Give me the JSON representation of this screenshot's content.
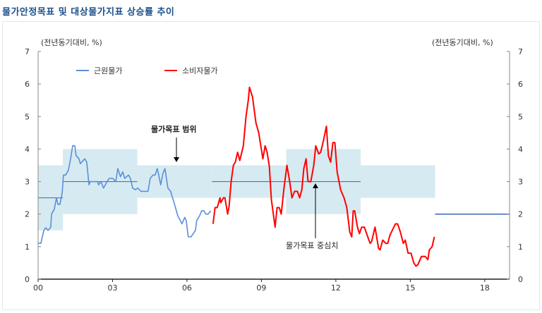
{
  "title": "물가안정목표 및 대상물가지표 상승률 추이",
  "chart_data": {
    "type": "line",
    "title": "물가안정목표 및 대상물가지표 상승률 추이",
    "ylabel_left": "(전년동기대비, %)",
    "ylabel_right": "(전년동기대비, %)",
    "ylim": [
      0,
      7
    ],
    "yticks": [
      "0",
      "1",
      "2",
      "3",
      "4",
      "5",
      "6",
      "7"
    ],
    "xlim": [
      2000,
      2019
    ],
    "xticks": [
      {
        "x": 2000,
        "label": "00"
      },
      {
        "x": 2003,
        "label": "03"
      },
      {
        "x": 2006,
        "label": "06"
      },
      {
        "x": 2009,
        "label": "09"
      },
      {
        "x": 2012,
        "label": "12"
      },
      {
        "x": 2015,
        "label": "15"
      },
      {
        "x": 2018,
        "label": "18"
      }
    ],
    "legend_placement": "top-left",
    "colors": {
      "core": "#5b8fd9",
      "cpi": "#ff0000",
      "band": "#d6eaf1",
      "target": "#3a66b0"
    },
    "series": [
      {
        "name": "근원물가",
        "key": "core",
        "points": [
          [
            2000.0,
            1.1
          ],
          [
            2000.11,
            1.1
          ],
          [
            2000.23,
            1.5
          ],
          [
            2000.31,
            1.58
          ],
          [
            2000.4,
            1.5
          ],
          [
            2000.51,
            1.6
          ],
          [
            2000.54,
            2.0
          ],
          [
            2000.65,
            2.15
          ],
          [
            2000.74,
            2.5
          ],
          [
            2000.8,
            2.3
          ],
          [
            2000.88,
            2.3
          ],
          [
            2000.97,
            2.65
          ],
          [
            2001.02,
            3.2
          ],
          [
            2001.11,
            3.2
          ],
          [
            2001.22,
            3.35
          ],
          [
            2001.31,
            3.7
          ],
          [
            2001.39,
            4.1
          ],
          [
            2001.48,
            4.1
          ],
          [
            2001.53,
            3.8
          ],
          [
            2001.65,
            3.7
          ],
          [
            2001.7,
            3.55
          ],
          [
            2001.88,
            3.7
          ],
          [
            2001.96,
            3.6
          ],
          [
            2002.05,
            2.9
          ],
          [
            2002.1,
            3.0
          ],
          [
            2002.39,
            3.0
          ],
          [
            2002.44,
            2.9
          ],
          [
            2002.53,
            3.0
          ],
          [
            2002.64,
            2.8
          ],
          [
            2002.78,
            3.0
          ],
          [
            2002.87,
            3.1
          ],
          [
            2003.01,
            3.1
          ],
          [
            2003.13,
            3.0
          ],
          [
            2003.21,
            3.4
          ],
          [
            2003.32,
            3.15
          ],
          [
            2003.41,
            3.3
          ],
          [
            2003.49,
            3.1
          ],
          [
            2003.64,
            3.2
          ],
          [
            2003.72,
            3.1
          ],
          [
            2003.81,
            2.8
          ],
          [
            2003.92,
            2.75
          ],
          [
            2004.01,
            2.8
          ],
          [
            2004.15,
            2.7
          ],
          [
            2004.43,
            2.7
          ],
          [
            2004.52,
            3.1
          ],
          [
            2004.63,
            3.2
          ],
          [
            2004.72,
            3.2
          ],
          [
            2004.8,
            3.4
          ],
          [
            2004.86,
            3.2
          ],
          [
            2004.94,
            2.9
          ],
          [
            2005.03,
            3.25
          ],
          [
            2005.11,
            3.4
          ],
          [
            2005.23,
            2.8
          ],
          [
            2005.34,
            2.7
          ],
          [
            2005.48,
            2.35
          ],
          [
            2005.63,
            1.95
          ],
          [
            2005.8,
            1.7
          ],
          [
            2005.91,
            1.9
          ],
          [
            2005.97,
            1.8
          ],
          [
            2006.05,
            1.3
          ],
          [
            2006.16,
            1.3
          ],
          [
            2006.34,
            1.5
          ],
          [
            2006.39,
            1.8
          ],
          [
            2006.51,
            1.95
          ],
          [
            2006.59,
            2.1
          ],
          [
            2006.68,
            2.1
          ],
          [
            2006.76,
            2.0
          ],
          [
            2006.85,
            2.0
          ],
          [
            2006.96,
            2.1
          ]
        ]
      },
      {
        "name": "소비자물가",
        "key": "cpi",
        "points": [
          [
            2007.05,
            1.7
          ],
          [
            2007.13,
            2.2
          ],
          [
            2007.22,
            2.2
          ],
          [
            2007.33,
            2.5
          ],
          [
            2007.36,
            2.35
          ],
          [
            2007.47,
            2.5
          ],
          [
            2007.53,
            2.5
          ],
          [
            2007.64,
            2.0
          ],
          [
            2007.7,
            2.25
          ],
          [
            2007.78,
            3.0
          ],
          [
            2007.87,
            3.5
          ],
          [
            2007.95,
            3.6
          ],
          [
            2008.04,
            3.9
          ],
          [
            2008.13,
            3.65
          ],
          [
            2008.27,
            4.1
          ],
          [
            2008.38,
            5.0
          ],
          [
            2008.47,
            5.5
          ],
          [
            2008.52,
            5.9
          ],
          [
            2008.64,
            5.6
          ],
          [
            2008.78,
            4.8
          ],
          [
            2008.89,
            4.5
          ],
          [
            2009.06,
            3.7
          ],
          [
            2009.15,
            4.1
          ],
          [
            2009.23,
            3.9
          ],
          [
            2009.32,
            3.45
          ],
          [
            2009.4,
            2.45
          ],
          [
            2009.55,
            1.6
          ],
          [
            2009.63,
            2.2
          ],
          [
            2009.72,
            2.2
          ],
          [
            2009.8,
            2.0
          ],
          [
            2009.91,
            2.8
          ],
          [
            2010.03,
            3.5
          ],
          [
            2010.14,
            3.0
          ],
          [
            2010.23,
            2.5
          ],
          [
            2010.34,
            2.7
          ],
          [
            2010.45,
            2.7
          ],
          [
            2010.54,
            2.5
          ],
          [
            2010.63,
            2.75
          ],
          [
            2010.71,
            3.4
          ],
          [
            2010.8,
            3.7
          ],
          [
            2010.88,
            3.0
          ],
          [
            2010.99,
            3.0
          ],
          [
            2011.11,
            3.5
          ],
          [
            2011.19,
            4.1
          ],
          [
            2011.31,
            3.85
          ],
          [
            2011.39,
            3.9
          ],
          [
            2011.51,
            4.3
          ],
          [
            2011.62,
            4.7
          ],
          [
            2011.7,
            3.8
          ],
          [
            2011.79,
            3.6
          ],
          [
            2011.88,
            4.2
          ],
          [
            2011.96,
            4.2
          ],
          [
            2012.05,
            3.3
          ],
          [
            2012.19,
            2.75
          ],
          [
            2012.33,
            2.5
          ],
          [
            2012.44,
            2.2
          ],
          [
            2012.56,
            1.45
          ],
          [
            2012.64,
            1.3
          ],
          [
            2012.7,
            2.1
          ],
          [
            2012.76,
            2.1
          ],
          [
            2012.87,
            1.6
          ],
          [
            2012.95,
            1.4
          ],
          [
            2013.04,
            1.6
          ],
          [
            2013.15,
            1.6
          ],
          [
            2013.24,
            1.4
          ],
          [
            2013.38,
            1.1
          ],
          [
            2013.44,
            1.15
          ],
          [
            2013.58,
            1.6
          ],
          [
            2013.72,
            0.95
          ],
          [
            2013.78,
            0.9
          ],
          [
            2013.89,
            1.2
          ],
          [
            2014.01,
            1.1
          ],
          [
            2014.09,
            1.1
          ],
          [
            2014.18,
            1.35
          ],
          [
            2014.4,
            1.7
          ],
          [
            2014.49,
            1.7
          ],
          [
            2014.6,
            1.45
          ],
          [
            2014.72,
            1.1
          ],
          [
            2014.8,
            1.2
          ],
          [
            2014.91,
            0.8
          ],
          [
            2015.03,
            0.8
          ],
          [
            2015.14,
            0.5
          ],
          [
            2015.23,
            0.4
          ],
          [
            2015.31,
            0.45
          ],
          [
            2015.45,
            0.7
          ],
          [
            2015.6,
            0.7
          ],
          [
            2015.71,
            0.6
          ],
          [
            2015.77,
            0.9
          ],
          [
            2015.88,
            1.0
          ],
          [
            2015.97,
            1.3
          ]
        ]
      }
    ],
    "target_bands": [
      {
        "from": 2000,
        "to": 2001,
        "low": 1.5,
        "high": 3.5,
        "center": 2.5
      },
      {
        "from": 2001,
        "to": 2004,
        "low": 2,
        "high": 4,
        "center": 3
      },
      {
        "from": 2004,
        "to": 2007,
        "low": 2.5,
        "high": 3.5
      },
      {
        "from": 2007,
        "to": 2010,
        "low": 2.5,
        "high": 3.5,
        "center": 3
      },
      {
        "from": 2010,
        "to": 2013,
        "low": 2,
        "high": 4,
        "center": 3
      },
      {
        "from": 2013,
        "to": 2016,
        "low": 2.5,
        "high": 3.5
      },
      {
        "from": 2016,
        "to": 2019,
        "center": 2
      }
    ],
    "annotations": {
      "range": "물가목표 범위",
      "center": "물가목표 중심치"
    }
  }
}
